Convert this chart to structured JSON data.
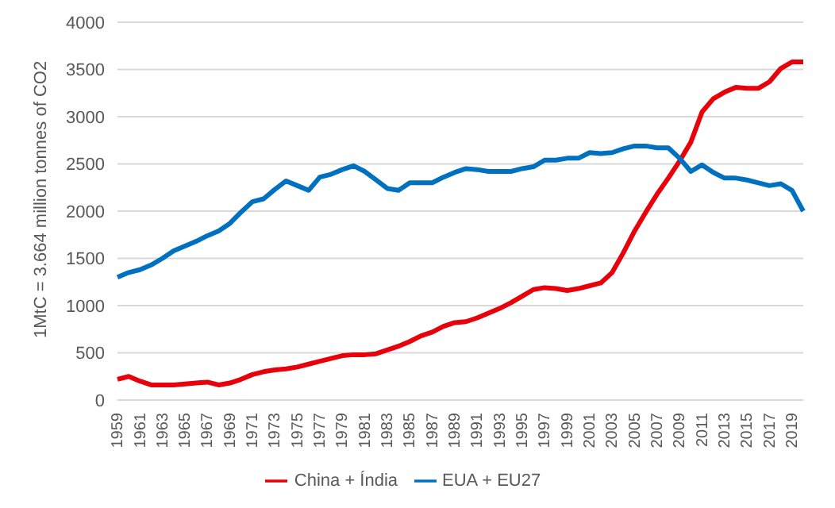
{
  "chart_data": {
    "type": "line",
    "ylabel": "1MtC = 3.664 million tonnes of CO2",
    "categories": [
      "1959",
      null,
      "1961",
      null,
      "1963",
      null,
      "1965",
      null,
      "1967",
      null,
      "1969",
      null,
      "1971",
      null,
      "1973",
      null,
      "1975",
      null,
      "1977",
      null,
      "1979",
      null,
      "1981",
      null,
      "1983",
      null,
      "1985",
      null,
      "1987",
      null,
      "1989",
      null,
      "1991",
      null,
      "1993",
      null,
      "1995",
      null,
      "1997",
      null,
      "1999",
      null,
      "2001",
      null,
      "2003",
      null,
      "2005",
      null,
      "2007",
      null,
      "2009",
      null,
      "2011",
      null,
      "2013",
      null,
      "2015",
      null,
      "2017",
      null,
      "2019",
      null
    ],
    "series": [
      {
        "name": "China + Índia",
        "color": "#e8000b",
        "values": [
          220,
          250,
          200,
          160,
          160,
          160,
          170,
          180,
          190,
          160,
          180,
          220,
          270,
          300,
          320,
          330,
          350,
          380,
          410,
          440,
          470,
          480,
          480,
          490,
          530,
          570,
          620,
          680,
          720,
          780,
          820,
          830,
          870,
          920,
          970,
          1030,
          1100,
          1170,
          1190,
          1180,
          1160,
          1180,
          1210,
          1240,
          1350,
          1560,
          1790,
          1990,
          2180,
          2350,
          2530,
          2730,
          3050,
          3190,
          3260,
          3310,
          3300,
          3300,
          3370,
          3510,
          3580,
          3580
        ]
      },
      {
        "name": "EUA + EU27",
        "color": "#0070c0",
        "values": [
          1300,
          1350,
          1380,
          1430,
          1500,
          1580,
          1630,
          1680,
          1740,
          1790,
          1870,
          1990,
          2100,
          2130,
          2230,
          2320,
          2270,
          2220,
          2360,
          2390,
          2440,
          2480,
          2420,
          2330,
          2240,
          2220,
          2300,
          2300,
          2300,
          2360,
          2410,
          2450,
          2440,
          2420,
          2420,
          2420,
          2450,
          2470,
          2540,
          2540,
          2560,
          2560,
          2620,
          2610,
          2620,
          2660,
          2690,
          2690,
          2670,
          2670,
          2560,
          2420,
          2490,
          2410,
          2350,
          2350,
          2330,
          2300,
          2270,
          2290,
          2220,
          2000
        ]
      }
    ],
    "ylim": [
      0,
      4000
    ],
    "yticks": [
      0,
      500,
      1000,
      1500,
      2000,
      2500,
      3000,
      3500,
      4000
    ],
    "grid": "y",
    "legend": "bottom",
    "marker": "none",
    "line_style": "solid"
  }
}
